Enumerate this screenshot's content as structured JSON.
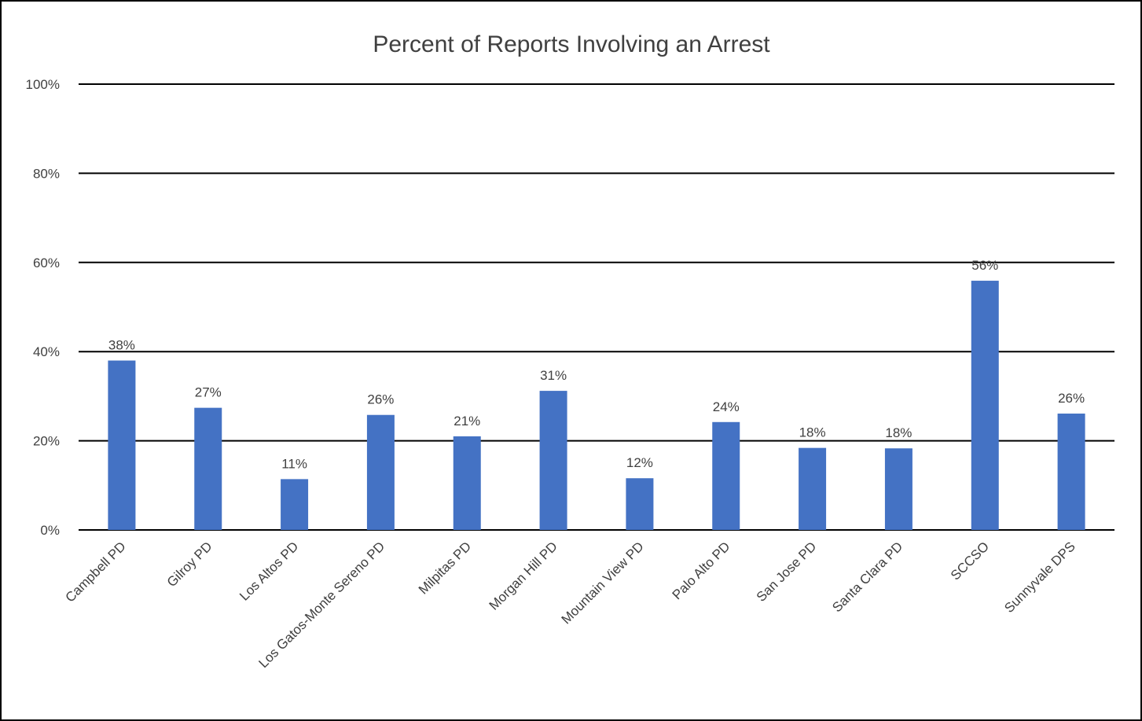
{
  "chart_data": {
    "type": "bar",
    "title": "Percent of Reports Involving an Arrest",
    "xlabel": "",
    "ylabel": "",
    "ylim": [
      0,
      100
    ],
    "yticks": [
      {
        "value": 0,
        "label": "0%"
      },
      {
        "value": 20,
        "label": "20%"
      },
      {
        "value": 40,
        "label": "40%"
      },
      {
        "value": 60,
        "label": "60%"
      },
      {
        "value": 80,
        "label": "80%"
      },
      {
        "value": 100,
        "label": "100%"
      }
    ],
    "grid": true,
    "legend": "none",
    "bar_color": "#4472C4",
    "categories": [
      "Campbell PD",
      "Gilroy PD",
      "Los Altos PD",
      "Los Gatos-Monte Sereno PD",
      "Milpitas PD",
      "Morgan Hill PD",
      "Mountain View PD",
      "Palo Alto PD",
      "San Jose PD",
      "Santa Clara PD",
      "SCCSO",
      "Sunnyvale DPS"
    ],
    "values": [
      38,
      27.4,
      11.4,
      25.8,
      21,
      31.2,
      11.6,
      24.2,
      18.4,
      18.3,
      55.9,
      26.1
    ],
    "data_labels": [
      "38%",
      "27%",
      "11%",
      "26%",
      "21%",
      "31%",
      "12%",
      "24%",
      "18%",
      "18%",
      "56%",
      "26%"
    ]
  }
}
